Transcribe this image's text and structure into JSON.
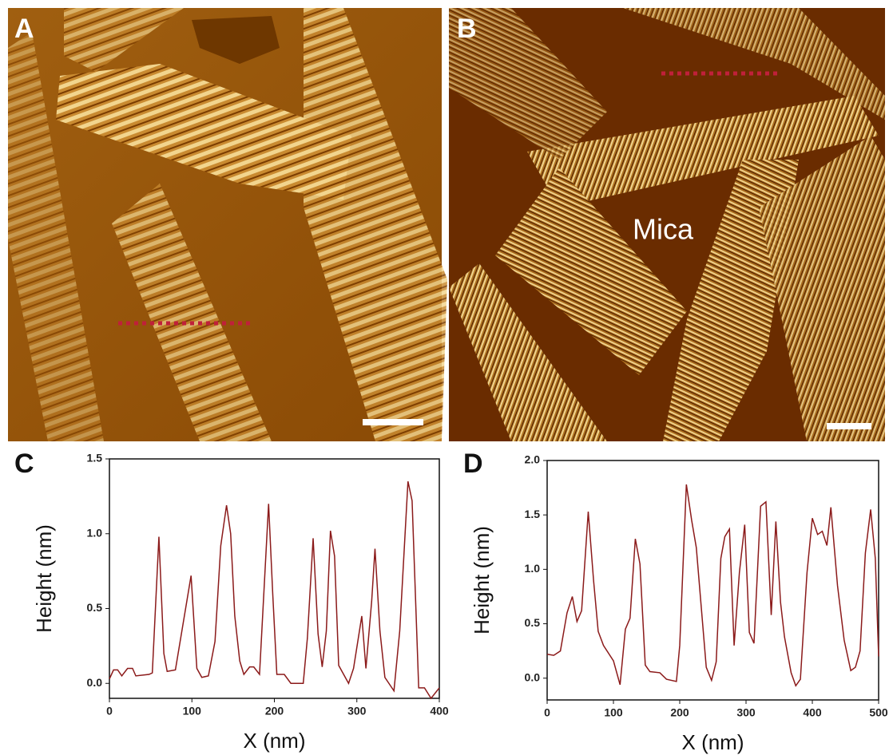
{
  "panels": {
    "A": "A",
    "B": "B",
    "C": "C",
    "D": "D"
  },
  "annotation": "Mica",
  "chart_data": [
    {
      "type": "line",
      "color": "#8b1a1a",
      "xlabel": "X (nm)",
      "ylabel": "Height (nm)",
      "xlim": [
        0,
        400
      ],
      "ylim": [
        -0.1,
        1.5
      ],
      "xticks": [
        0,
        100,
        200,
        300,
        400
      ],
      "yticks": [
        {
          "value": 0,
          "label": "0.0"
        },
        0.5,
        {
          "value": 1,
          "label": "1.0"
        },
        1.5
      ],
      "x": [
        0,
        5,
        10,
        15,
        22,
        28,
        32,
        48,
        52,
        60,
        66,
        70,
        80,
        99,
        106,
        112,
        120,
        128,
        135,
        142,
        147,
        152,
        158,
        163,
        170,
        175,
        182,
        193,
        198,
        203,
        212,
        220,
        235,
        240,
        247,
        253,
        258,
        263,
        268,
        273,
        278,
        290,
        296,
        306,
        311,
        318,
        322,
        328,
        334,
        345,
        352,
        362,
        367,
        375,
        382,
        390,
        400
      ],
      "values": [
        0.03,
        0.09,
        0.09,
        0.05,
        0.1,
        0.1,
        0.05,
        0.06,
        0.07,
        0.98,
        0.2,
        0.08,
        0.09,
        0.72,
        0.1,
        0.04,
        0.05,
        0.28,
        0.92,
        1.19,
        1.0,
        0.45,
        0.15,
        0.06,
        0.11,
        0.11,
        0.06,
        1.2,
        0.6,
        0.06,
        0.06,
        0.0,
        0.0,
        0.3,
        0.97,
        0.33,
        0.11,
        0.35,
        1.02,
        0.85,
        0.12,
        0.0,
        0.1,
        0.45,
        0.1,
        0.55,
        0.9,
        0.35,
        0.04,
        -0.05,
        0.35,
        1.35,
        1.22,
        -0.03,
        -0.03,
        -0.1,
        -0.03
      ]
    },
    {
      "type": "line",
      "color": "#8b1a1a",
      "xlabel": "X (nm)",
      "ylabel": "Height (nm)",
      "xlim": [
        0,
        500
      ],
      "ylim": [
        -0.2,
        2.0
      ],
      "xticks": [
        0,
        100,
        200,
        300,
        400,
        500
      ],
      "yticks": [
        {
          "value": 0,
          "label": "0.0"
        },
        0.5,
        {
          "value": 1,
          "label": "1.0"
        },
        1.5,
        {
          "value": 2,
          "label": "2.0"
        }
      ],
      "x": [
        0,
        10,
        20,
        30,
        38,
        45,
        52,
        62,
        70,
        77,
        85,
        100,
        110,
        118,
        125,
        133,
        140,
        148,
        155,
        170,
        180,
        195,
        200,
        210,
        218,
        225,
        240,
        248,
        255,
        262,
        268,
        275,
        282,
        290,
        298,
        305,
        312,
        322,
        330,
        338,
        345,
        352,
        358,
        368,
        375,
        382,
        392,
        400,
        408,
        415,
        422,
        428,
        438,
        448,
        458,
        465,
        472,
        480,
        488,
        495,
        500
      ],
      "values": [
        0.22,
        0.21,
        0.25,
        0.6,
        0.75,
        0.52,
        0.62,
        1.53,
        0.9,
        0.43,
        0.3,
        0.16,
        -0.06,
        0.45,
        0.55,
        1.28,
        1.05,
        0.12,
        0.06,
        0.05,
        -0.01,
        -0.03,
        0.3,
        1.78,
        1.45,
        1.2,
        0.1,
        -0.02,
        0.15,
        1.1,
        1.3,
        1.37,
        0.3,
        0.97,
        1.41,
        0.42,
        0.32,
        1.58,
        1.62,
        0.58,
        1.44,
        0.7,
        0.38,
        0.05,
        -0.07,
        -0.01,
        0.97,
        1.47,
        1.32,
        1.35,
        1.22,
        1.57,
        0.85,
        0.35,
        0.07,
        0.1,
        0.25,
        1.15,
        1.55,
        1.1,
        0.2
      ]
    }
  ]
}
